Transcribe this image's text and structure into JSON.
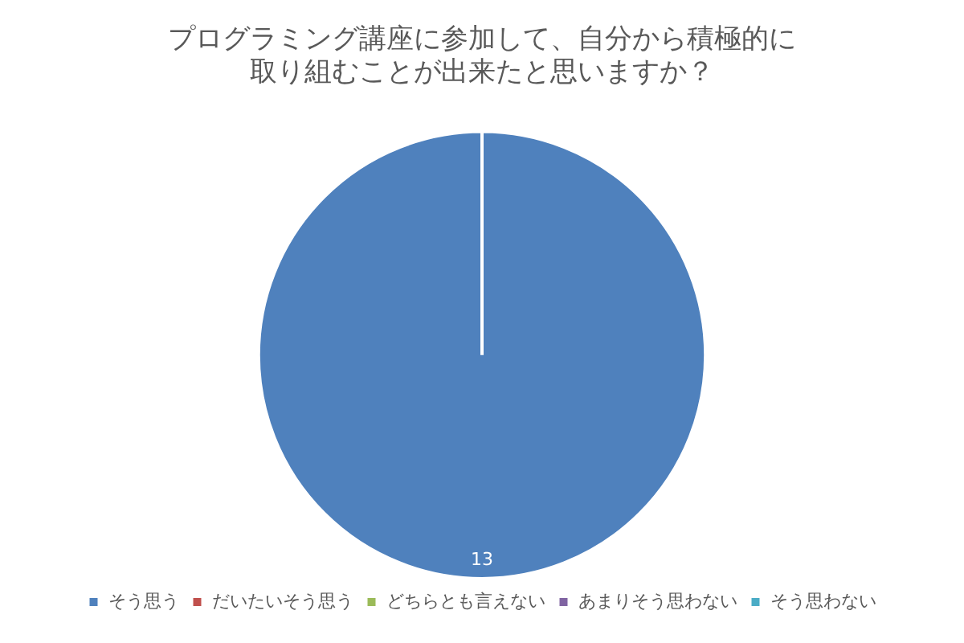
{
  "chart_data": {
    "type": "pie",
    "title": "プログラミング講座に参加して、自分から積極的に取り組むことが出来たと思いますか？",
    "categories": [
      "そう思う",
      "だいたいそう思う",
      "どちらとも言えない",
      "あまりそう思わない",
      "そう思わない"
    ],
    "values": [
      13,
      0,
      0,
      0,
      0
    ],
    "colors": [
      "#4f81bd",
      "#c0504d",
      "#9bbb59",
      "#8064a2",
      "#4bacc6"
    ],
    "value_labels": [
      "13",
      null,
      null,
      null,
      null
    ],
    "legend": "bottom"
  }
}
